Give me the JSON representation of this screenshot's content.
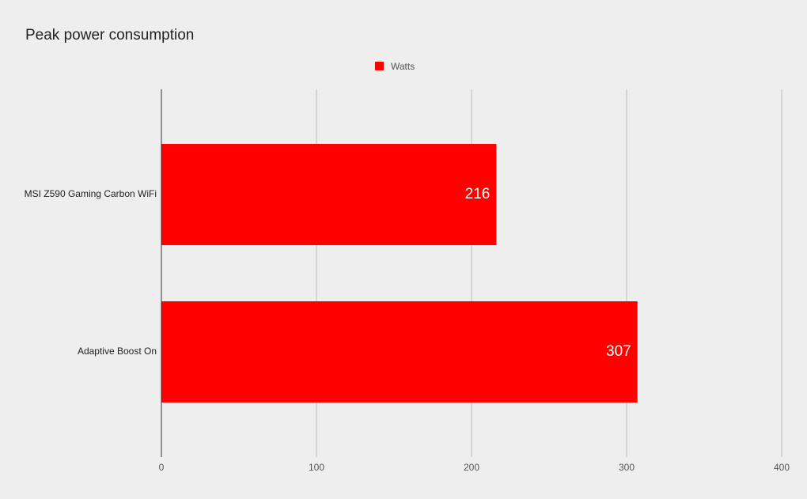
{
  "chart_data": {
    "type": "bar",
    "orientation": "horizontal",
    "title": "Peak power consumption",
    "categories": [
      "MSI Z590 Gaming Carbon WiFi",
      "Adaptive Boost On"
    ],
    "series": [
      {
        "name": "Watts",
        "color": "#ff0000",
        "values": [
          216,
          307
        ]
      }
    ],
    "xlim": [
      0,
      400
    ],
    "xticks": [
      0,
      100,
      200,
      300,
      400
    ],
    "grid": true,
    "legend": "top"
  }
}
